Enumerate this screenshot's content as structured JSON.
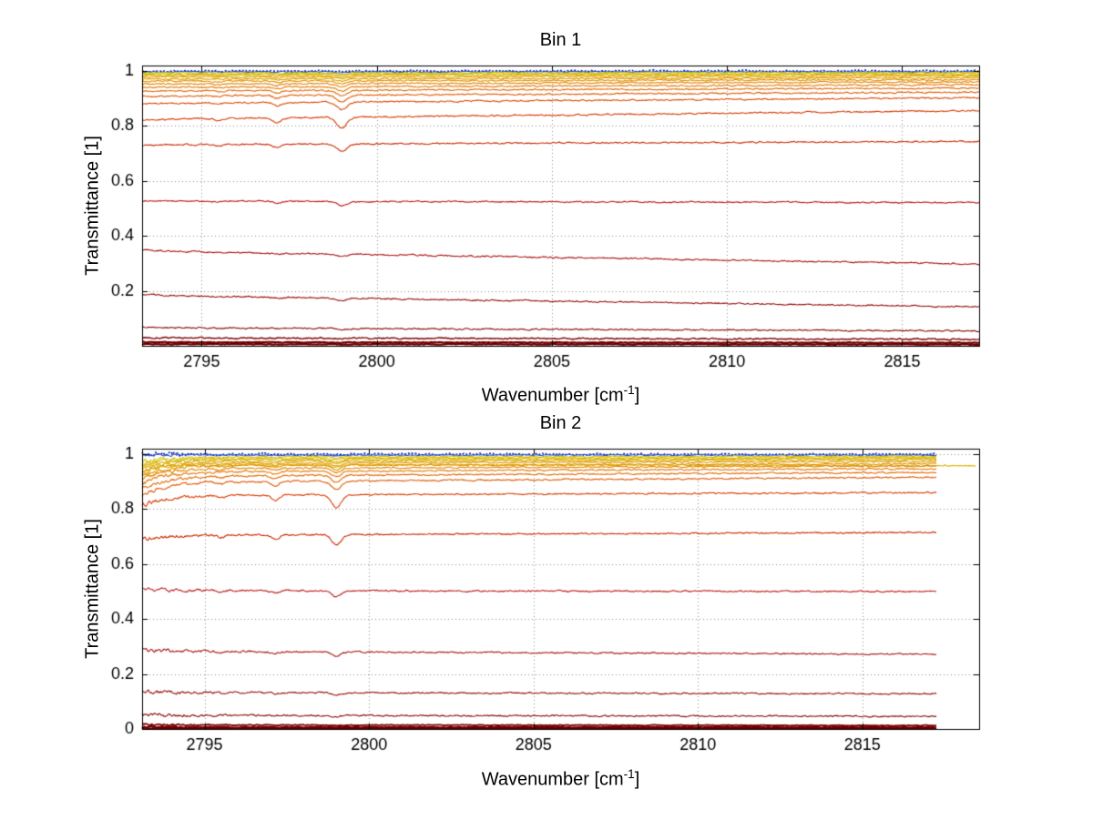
{
  "figure": {
    "background": "#ffffff"
  },
  "chart_data": [
    {
      "type": "line",
      "title": "Bin 1",
      "xlabel": "Wavenumber [cm⁻¹]",
      "xlabel_parts": {
        "main": "Wavenumber [cm",
        "sup": "-1",
        "end": "]"
      },
      "ylabel": "Transmittance [1]",
      "xlim": [
        2793.3,
        2817.2
      ],
      "ylim": [
        0,
        1.02
      ],
      "xticks": [
        2795,
        2800,
        2805,
        2810,
        2815
      ],
      "xtick_labels": [
        "2795",
        "2800",
        "2805",
        "2810",
        "2815"
      ],
      "yticks": [
        0.2,
        0.4,
        0.6,
        0.8,
        1
      ],
      "ytick_labels": [
        "0.2",
        "0.4",
        "0.6",
        "0.8",
        "1"
      ],
      "grid": true,
      "legend": null,
      "noise": 0.004,
      "settle_tau": 0.6,
      "data_x_end": 2817.2,
      "absorption_features": [
        {
          "center": 2799.0,
          "sigma": 0.15,
          "strength": 1.0
        },
        {
          "center": 2797.15,
          "sigma": 0.12,
          "strength": 0.45
        },
        {
          "center": 2795.5,
          "sigma": 0.1,
          "strength": 0.2
        }
      ],
      "series": [
        {
          "y": [
            1.0,
            1.0,
            1.0
          ],
          "c": "#0a1fa0",
          "d": 0.002,
          "w": 1.6,
          "n": 0.0045,
          "dash": [
            2,
            2
          ]
        },
        {
          "y": [
            0.997,
            0.997,
            0.997
          ],
          "c": "#2b50d0",
          "d": 0.003,
          "w": 1.1,
          "n": 0.003
        },
        {
          "y": [
            0.993,
            0.993,
            0.994
          ],
          "c": "#d2c400",
          "d": 0.004
        },
        {
          "y": [
            0.989,
            0.989,
            0.99
          ],
          "c": "#d6ba00",
          "d": 0.005
        },
        {
          "y": [
            0.984,
            0.984,
            0.986
          ],
          "c": "#dab000",
          "d": 0.006
        },
        {
          "y": [
            0.978,
            0.978,
            0.981
          ],
          "c": "#dea600",
          "d": 0.007
        },
        {
          "y": [
            0.971,
            0.971,
            0.975
          ],
          "c": "#e09c00",
          "d": 0.009
        },
        {
          "y": [
            0.963,
            0.963,
            0.968
          ],
          "c": "#e29000",
          "d": 0.011
        },
        {
          "y": [
            0.953,
            0.953,
            0.96
          ],
          "c": "#e38400",
          "d": 0.013
        },
        {
          "y": [
            0.941,
            0.941,
            0.95
          ],
          "c": "#e47600",
          "d": 0.016
        },
        {
          "y": [
            0.927,
            0.927,
            0.938
          ],
          "c": "#e26800",
          "d": 0.019
        },
        {
          "y": [
            0.908,
            0.909,
            0.923
          ],
          "c": "#e05800",
          "d": 0.023
        },
        {
          "y": [
            0.88,
            0.882,
            0.903
          ],
          "c": "#dc4800",
          "d": 0.028
        },
        {
          "y": [
            0.82,
            0.824,
            0.856
          ],
          "c": "#d63800",
          "d": 0.038
        },
        {
          "y": [
            0.73,
            0.732,
            0.744
          ],
          "c": "#cc2800",
          "d": 0.026
        },
        {
          "y": [
            0.527,
            0.527,
            0.521
          ],
          "c": "#bc1818",
          "d": 0.015
        },
        {
          "y": [
            0.35,
            0.345,
            0.298
          ],
          "c": "#aa1010",
          "d": 0.01
        },
        {
          "y": [
            0.188,
            0.183,
            0.142
          ],
          "c": "#960a0a",
          "d": 0.007
        },
        {
          "y": [
            0.068,
            0.066,
            0.054
          ],
          "c": "#860404",
          "d": 0.004
        },
        {
          "y": [
            0.03,
            0.029,
            0.024
          ],
          "c": "#7c0202",
          "d": 0.002,
          "w": 1.4
        },
        {
          "y": [
            0.014,
            0.013,
            0.011
          ],
          "c": "#740000",
          "d": 0.001,
          "w": 2.2,
          "n": 0.002
        },
        {
          "y": [
            0.006,
            0.006,
            0.005
          ],
          "c": "#6e0000",
          "d": 0.001,
          "w": 2.2,
          "n": 0.002
        }
      ]
    },
    {
      "type": "line",
      "title": "Bin 2",
      "xlabel": "Wavenumber [cm⁻¹]",
      "xlabel_parts": {
        "main": "Wavenumber [cm",
        "sup": "-1",
        "end": "]"
      },
      "ylabel": "Transmittance [1]",
      "xlim": [
        2793.1,
        2818.55
      ],
      "ylim": [
        0,
        1.02
      ],
      "xticks": [
        2795,
        2800,
        2805,
        2810,
        2815
      ],
      "xtick_labels": [
        "2795",
        "2800",
        "2805",
        "2810",
        "2815"
      ],
      "yticks": [
        0,
        0.2,
        0.4,
        0.6,
        0.8,
        1
      ],
      "ytick_labels": [
        "0",
        "0.2",
        "0.4",
        "0.6",
        "0.8",
        "1"
      ],
      "grid": true,
      "legend": null,
      "noise": 0.004,
      "settle_tau": 0.75,
      "data_x_end": 2817.25,
      "left_noise_boost": {
        "factor": 2.2,
        "tau": 1.6
      },
      "absorption_features": [
        {
          "center": 2799.0,
          "sigma": 0.15,
          "strength": 1.0
        },
        {
          "center": 2797.15,
          "sigma": 0.12,
          "strength": 0.45
        },
        {
          "center": 2795.5,
          "sigma": 0.1,
          "strength": 0.2
        }
      ],
      "series": [
        {
          "y": [
            1.0,
            1.0,
            1.0
          ],
          "c": "#0a1fa0",
          "d": 0.002,
          "w": 1.6,
          "n": 0.005,
          "dash": [
            2,
            2
          ]
        },
        {
          "y": [
            0.995,
            0.997,
            0.997
          ],
          "c": "#2b50d0",
          "d": 0.003,
          "w": 1.1,
          "n": 0.003
        },
        {
          "y": [
            0.972,
            0.99,
            0.992
          ],
          "c": "#d2c400",
          "d": 0.005
        },
        {
          "y": [
            0.962,
            0.985,
            0.988
          ],
          "c": "#d6ba00",
          "d": 0.006
        },
        {
          "y": [
            0.954,
            0.98,
            0.984
          ],
          "c": "#dab000",
          "d": 0.008
        },
        {
          "y": [
            0.945,
            0.974,
            0.979
          ],
          "c": "#dea600",
          "d": 0.01
        },
        {
          "y": [
            0.934,
            0.967,
            0.973
          ],
          "c": "#e09c00",
          "d": 0.012
        },
        {
          "y": [
            0.94,
            0.963,
            0.958
          ],
          "c": "#d8b400",
          "d": 0.009,
          "x1": 2818.45
        },
        {
          "y": [
            0.922,
            0.958,
            0.965
          ],
          "c": "#e29000",
          "d": 0.014
        },
        {
          "y": [
            0.908,
            0.948,
            0.957
          ],
          "c": "#e38400",
          "d": 0.017
        },
        {
          "y": [
            0.892,
            0.936,
            0.947
          ],
          "c": "#e47600",
          "d": 0.021
        },
        {
          "y": [
            0.872,
            0.92,
            0.934
          ],
          "c": "#e26800",
          "d": 0.026
        },
        {
          "y": [
            0.848,
            0.898,
            0.916
          ],
          "c": "#e05600",
          "d": 0.032
        },
        {
          "y": [
            0.812,
            0.85,
            0.86
          ],
          "c": "#d83c00",
          "d": 0.046
        },
        {
          "y": [
            0.688,
            0.705,
            0.715
          ],
          "c": "#cc2800",
          "d": 0.036
        },
        {
          "y": [
            0.508,
            0.504,
            0.5
          ],
          "c": "#bc1818",
          "d": 0.022
        },
        {
          "y": [
            0.288,
            0.283,
            0.272
          ],
          "c": "#a81010",
          "d": 0.014
        },
        {
          "y": [
            0.136,
            0.133,
            0.128
          ],
          "c": "#960a0a",
          "d": 0.008
        },
        {
          "y": [
            0.052,
            0.05,
            0.046
          ],
          "c": "#860404",
          "d": 0.004
        },
        {
          "y": [
            0.016,
            0.015,
            0.013
          ],
          "c": "#7c0202",
          "d": 0.002,
          "w": 1.8,
          "n": 0.002
        },
        {
          "y": [
            0.007,
            0.006,
            0.006
          ],
          "c": "#740000",
          "d": 0.001,
          "w": 2.4,
          "n": 0.002
        },
        {
          "y": [
            0.002,
            0.002,
            0.002
          ],
          "c": "#6e0000",
          "d": 0.001,
          "w": 2.4,
          "n": 0.0015
        }
      ]
    }
  ]
}
